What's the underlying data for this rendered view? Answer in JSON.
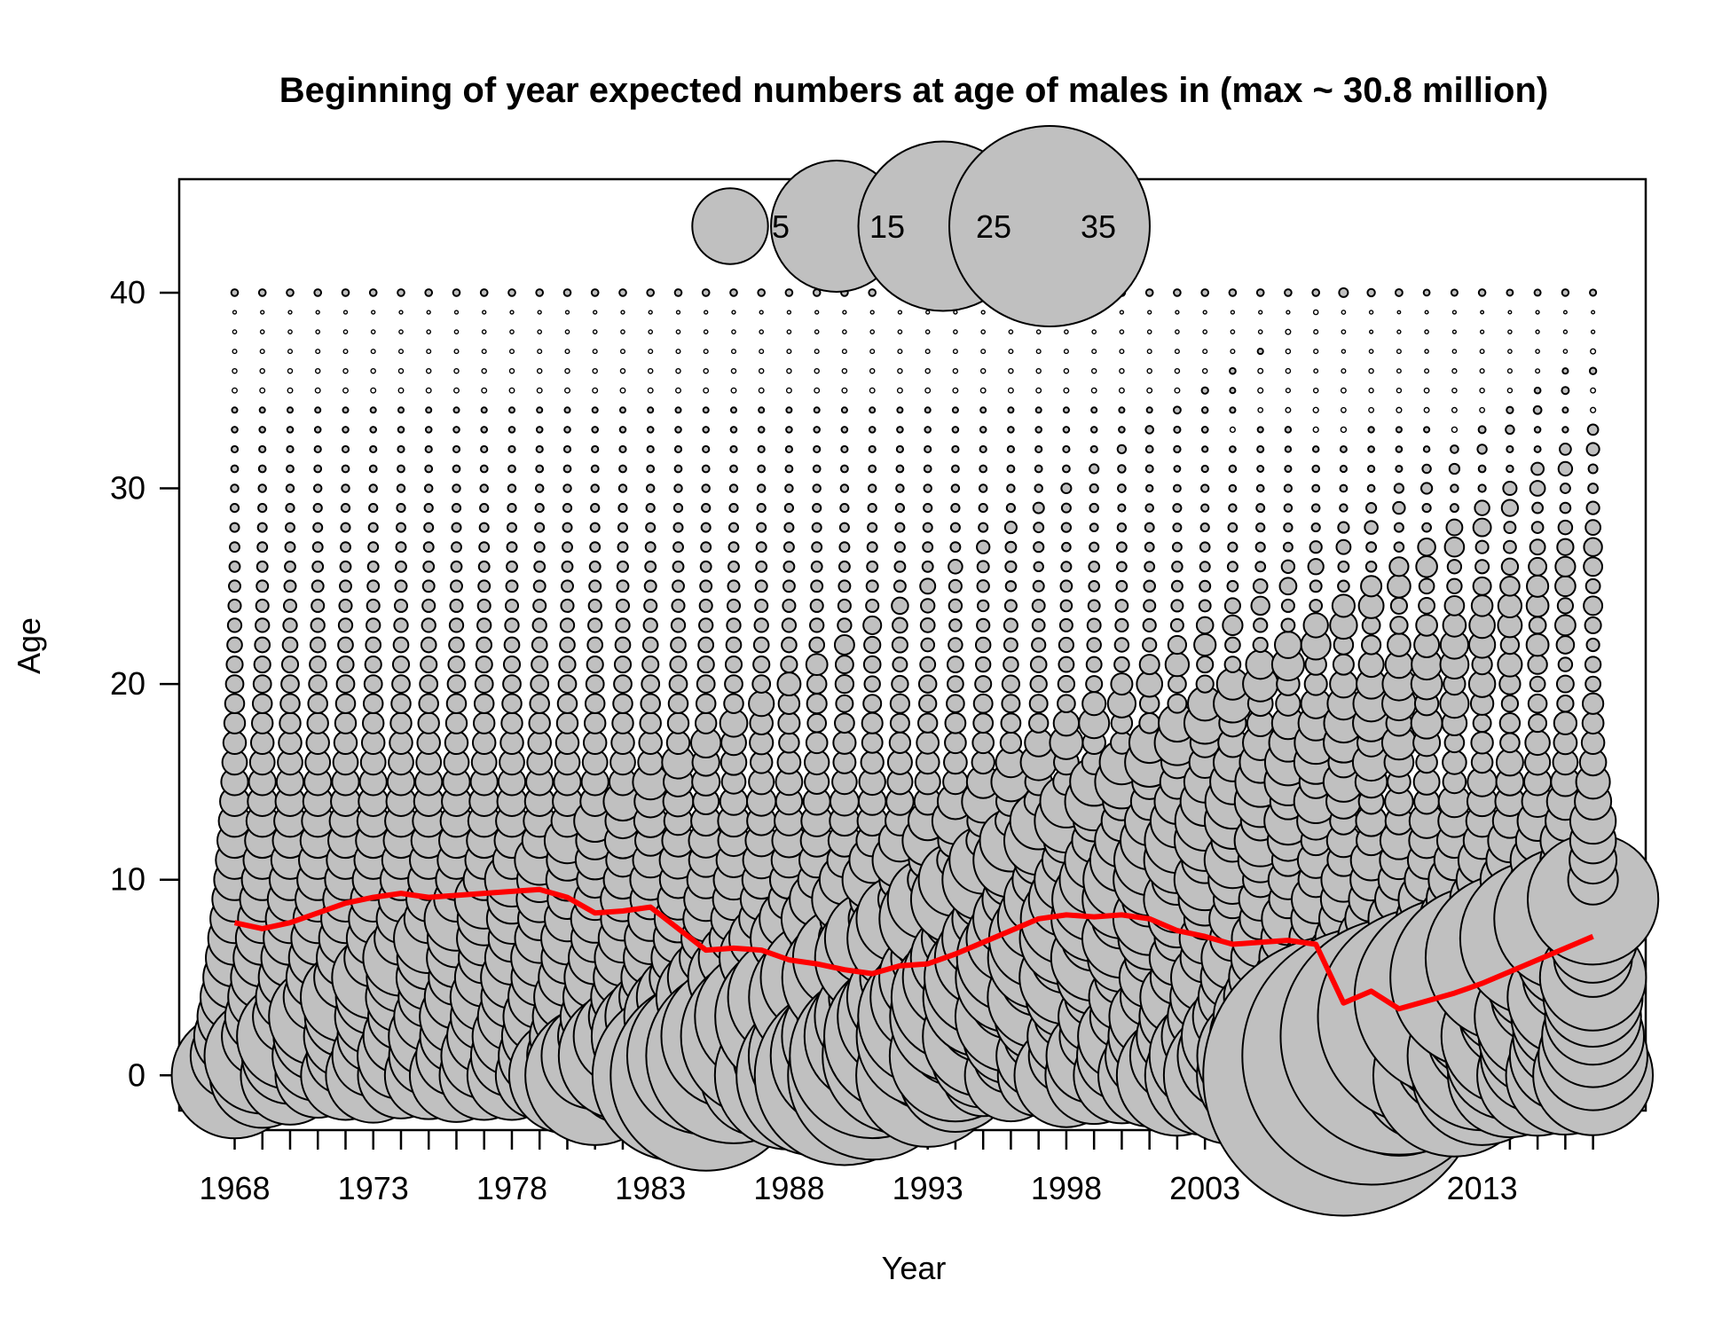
{
  "chart_data": {
    "type": "scatter",
    "subtype": "bubble",
    "title": "Beginning of year expected numbers at age of males in (max ~ 30.8 million)",
    "xlabel": "Year",
    "ylabel": "Age",
    "x_tick_labels": [
      "1968",
      "1973",
      "1978",
      "1983",
      "1988",
      "1993",
      "1998",
      "2003",
      "2008",
      "2013"
    ],
    "y_tick_labels": [
      "0",
      "10",
      "20",
      "30",
      "40"
    ],
    "xlim": [
      1966,
      2018.9
    ],
    "ylim": [
      -1.8,
      45.8
    ],
    "years": [
      1968,
      2017
    ],
    "ages": [
      0,
      40
    ],
    "max_value_million": 30.8,
    "legend": {
      "position": "top-center",
      "labels": [
        "5",
        "15",
        "25",
        "35"
      ],
      "values": [
        5,
        15,
        25,
        35
      ]
    },
    "bubble_fill": "#c0c0c0",
    "bubble_stroke": "#000000",
    "mean_age_color": "#ff0000",
    "grid": false,
    "recruitment_million": [
      6.2,
      4.3,
      3.8,
      2.8,
      3.1,
      3.5,
      2.9,
      3.0,
      3.4,
      3.1,
      3.1,
      3.0,
      5.3,
      7.6,
      3.6,
      3.4,
      11.5,
      14.2,
      6.0,
      5.8,
      8.6,
      10.1,
      12.6,
      11.1,
      5.4,
      8.0,
      5.0,
      2.6,
      3.3,
      2.6,
      4.2,
      3.7,
      3.6,
      4.1,
      5.7,
      5.6,
      7.4,
      6.3,
      5.6,
      5.3,
      30.8,
      11.5,
      10.1,
      6.6,
      10.3,
      7.6,
      6.0,
      5.7,
      5.5,
      5.6
    ],
    "mean_age": [
      {
        "year": 1968,
        "age": 7.8
      },
      {
        "year": 1969,
        "age": 7.5
      },
      {
        "year": 1970,
        "age": 7.8
      },
      {
        "year": 1971,
        "age": 8.3
      },
      {
        "year": 1972,
        "age": 8.8
      },
      {
        "year": 1973,
        "age": 9.1
      },
      {
        "year": 1974,
        "age": 9.3
      },
      {
        "year": 1975,
        "age": 9.1
      },
      {
        "year": 1976,
        "age": 9.2
      },
      {
        "year": 1977,
        "age": 9.3
      },
      {
        "year": 1978,
        "age": 9.4
      },
      {
        "year": 1979,
        "age": 9.5
      },
      {
        "year": 1980,
        "age": 9.1
      },
      {
        "year": 1981,
        "age": 8.3
      },
      {
        "year": 1982,
        "age": 8.4
      },
      {
        "year": 1983,
        "age": 8.6
      },
      {
        "year": 1984,
        "age": 7.5
      },
      {
        "year": 1985,
        "age": 6.4
      },
      {
        "year": 1986,
        "age": 6.5
      },
      {
        "year": 1987,
        "age": 6.4
      },
      {
        "year": 1988,
        "age": 5.9
      },
      {
        "year": 1989,
        "age": 5.7
      },
      {
        "year": 1990,
        "age": 5.4
      },
      {
        "year": 1991,
        "age": 5.2
      },
      {
        "year": 1992,
        "age": 5.6
      },
      {
        "year": 1993,
        "age": 5.7
      },
      {
        "year": 1994,
        "age": 6.2
      },
      {
        "year": 1995,
        "age": 6.8
      },
      {
        "year": 1996,
        "age": 7.4
      },
      {
        "year": 1997,
        "age": 8.0
      },
      {
        "year": 1998,
        "age": 8.2
      },
      {
        "year": 1999,
        "age": 8.1
      },
      {
        "year": 2000,
        "age": 8.2
      },
      {
        "year": 2001,
        "age": 8.0
      },
      {
        "year": 2002,
        "age": 7.4
      },
      {
        "year": 2003,
        "age": 7.1
      },
      {
        "year": 2004,
        "age": 6.7
      },
      {
        "year": 2005,
        "age": 6.8
      },
      {
        "year": 2006,
        "age": 6.9
      },
      {
        "year": 2007,
        "age": 6.7
      },
      {
        "year": 2008,
        "age": 3.7
      },
      {
        "year": 2009,
        "age": 4.3
      },
      {
        "year": 2010,
        "age": 3.4
      },
      {
        "year": 2011,
        "age": 3.8
      },
      {
        "year": 2012,
        "age": 4.2
      },
      {
        "year": 2013,
        "age": 4.7
      },
      {
        "year": 2014,
        "age": 5.3
      },
      {
        "year": 2015,
        "age": 5.9
      },
      {
        "year": 2016,
        "age": 6.5
      },
      {
        "year": 2017,
        "age": 7.1
      }
    ]
  }
}
